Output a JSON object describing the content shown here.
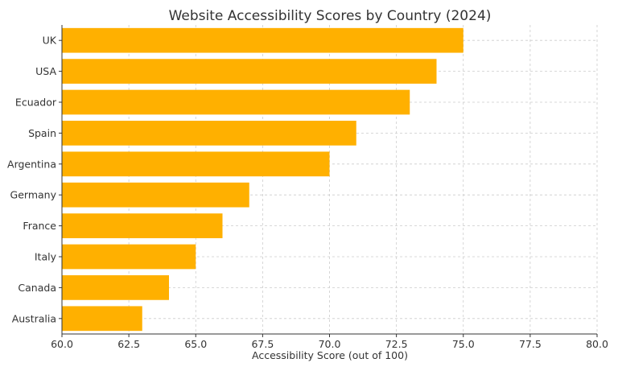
{
  "chart_data": {
    "type": "bar",
    "orientation": "horizontal",
    "title": "Website Accessibility Scores by Country (2024)",
    "xlabel": "Accessibility Score (out of 100)",
    "ylabel": "",
    "categories": [
      "UK",
      "USA",
      "Ecuador",
      "Spain",
      "Argentina",
      "Germany",
      "France",
      "Italy",
      "Canada",
      "Australia"
    ],
    "values": [
      75,
      74,
      73,
      71,
      70,
      67,
      66,
      65,
      64,
      63
    ],
    "xlim": [
      60,
      80
    ],
    "xticks": [
      "60.0",
      "62.5",
      "65.0",
      "67.5",
      "70.0",
      "72.5",
      "75.0",
      "77.5",
      "80.0"
    ],
    "grid": true,
    "colors": {
      "bar": "#FFB000",
      "grid": "#cccccc",
      "axis": "#333333"
    }
  }
}
